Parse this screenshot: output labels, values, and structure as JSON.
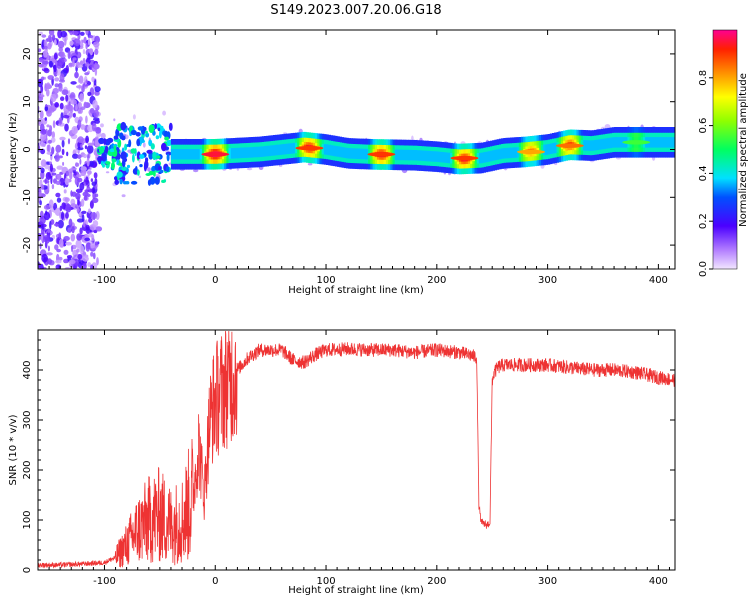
{
  "title": "S149.2023.007.20.06.G18",
  "chart_data": [
    {
      "type": "heatmap",
      "xlabel": "Height of straight line (km)",
      "ylabel": "Frequency (Hz)",
      "xlim": [
        -160,
        415
      ],
      "ylim": [
        -25,
        25
      ],
      "xticks": [
        -100,
        0,
        100,
        200,
        300,
        400
      ],
      "yticks": [
        -20,
        -10,
        0,
        10,
        20
      ],
      "colorbar": {
        "label": "Normalized spectral amplitude",
        "range": [
          0.0,
          1.0
        ],
        "ticks": [
          0.0,
          0.2,
          0.4,
          0.6,
          0.8
        ]
      },
      "ridge_path": {
        "x": [
          -40,
          -30,
          -20,
          0,
          40,
          80,
          100,
          120,
          140,
          180,
          200,
          220,
          240,
          260,
          280,
          300,
          320,
          340,
          360,
          415
        ],
        "freq": [
          -1.0,
          -1.0,
          -1.0,
          -1.0,
          -0.5,
          0.5,
          0.0,
          -0.8,
          -1.0,
          -1.2,
          -1.5,
          -2.0,
          -1.8,
          -0.8,
          -0.5,
          0.0,
          1.0,
          0.8,
          1.5,
          1.5
        ]
      },
      "ridge_peaks": [
        {
          "x": 0,
          "freq": -1.0,
          "amplitude": 0.95
        },
        {
          "x": 85,
          "freq": 0.3,
          "amplitude": 0.9
        },
        {
          "x": 150,
          "freq": -1.0,
          "amplitude": 0.9
        },
        {
          "x": 225,
          "freq": -1.8,
          "amplitude": 0.9
        },
        {
          "x": 285,
          "freq": -0.5,
          "amplitude": 0.8
        },
        {
          "x": 320,
          "freq": 0.8,
          "amplitude": 0.85
        },
        {
          "x": 380,
          "freq": 1.5,
          "amplitude": 0.55
        }
      ]
    },
    {
      "type": "line",
      "xlabel": "Height of straight line (km)",
      "ylabel": "SNR (10 * v/v)",
      "xlim": [
        -160,
        415
      ],
      "ylim": [
        0,
        480
      ],
      "xticks": [
        -100,
        0,
        100,
        200,
        300,
        400
      ],
      "yticks": [
        0,
        100,
        200,
        300,
        400
      ],
      "color": "#ee3333",
      "x": [
        -160,
        -140,
        -120,
        -100,
        -90,
        -80,
        -70,
        -60,
        -50,
        -40,
        -30,
        -20,
        -15,
        -10,
        -5,
        0,
        10,
        20,
        30,
        40,
        50,
        60,
        65,
        70,
        80,
        90,
        100,
        120,
        140,
        160,
        180,
        200,
        220,
        230,
        236,
        238,
        240,
        245,
        248,
        250,
        252,
        255,
        260,
        280,
        300,
        320,
        340,
        360,
        380,
        400,
        415
      ],
      "y": [
        10,
        10,
        12,
        15,
        25,
        50,
        80,
        100,
        110,
        90,
        100,
        150,
        250,
        150,
        300,
        340,
        370,
        400,
        425,
        440,
        440,
        440,
        430,
        420,
        415,
        430,
        440,
        442,
        440,
        440,
        435,
        440,
        435,
        430,
        425,
        130,
        95,
        90,
        95,
        380,
        395,
        405,
        410,
        410,
        410,
        405,
        400,
        400,
        395,
        385,
        380
      ]
    }
  ]
}
